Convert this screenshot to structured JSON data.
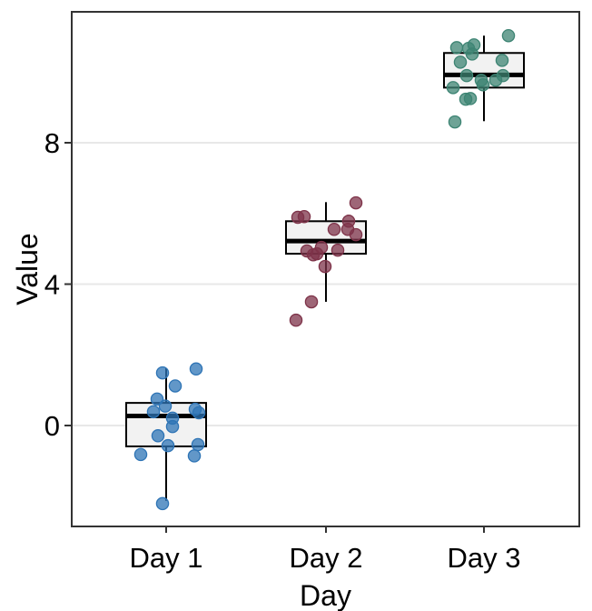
{
  "chart_data": {
    "type": "boxplot",
    "title": "",
    "xlabel": "Day",
    "ylabel": "Value",
    "categories": [
      "Day 1",
      "Day 2",
      "Day 3"
    ],
    "y_ticks": [
      0,
      4,
      8
    ],
    "ylim": [
      -2.9,
      11.7
    ],
    "grid": "horizontal major gridlines only",
    "legend": "none",
    "series": [
      {
        "name": "Day 1",
        "point_color": "#2e74b5",
        "box": {
          "whisker_low": -2.13,
          "q1": -0.59,
          "median": 0.27,
          "q3": 0.64,
          "whisker_high": 1.62
        },
        "points": [
          [
            1.6,
            33
          ],
          [
            1.49,
            -4
          ],
          [
            1.12,
            10
          ],
          [
            0.75,
            -10
          ],
          [
            0.55,
            -1
          ],
          [
            0.46,
            32
          ],
          [
            0.39,
            -14
          ],
          [
            0.36,
            36
          ],
          [
            0.21,
            7
          ],
          [
            -0.03,
            7
          ],
          [
            -0.29,
            -9
          ],
          [
            -0.54,
            35
          ],
          [
            -0.57,
            2
          ],
          [
            -0.82,
            -28
          ],
          [
            -0.86,
            31
          ],
          [
            -2.21,
            -4
          ]
        ]
      },
      {
        "name": "Day 2",
        "point_color": "#7e3349",
        "box": {
          "whisker_low": 3.5,
          "q1": 4.86,
          "median": 5.22,
          "q3": 5.78,
          "whisker_high": 6.32
        },
        "points": [
          [
            6.3,
            33
          ],
          [
            5.91,
            -24
          ],
          [
            5.89,
            -31
          ],
          [
            5.78,
            25
          ],
          [
            5.55,
            24
          ],
          [
            5.55,
            9
          ],
          [
            5.4,
            33
          ],
          [
            5.04,
            -5
          ],
          [
            4.96,
            13
          ],
          [
            4.94,
            -21
          ],
          [
            4.86,
            -10
          ],
          [
            4.83,
            -14
          ],
          [
            4.5,
            -1
          ],
          [
            3.5,
            -16
          ],
          [
            2.98,
            -33
          ]
        ]
      },
      {
        "name": "Day 3",
        "point_color": "#3d8473",
        "box": {
          "whisker_low": 8.61,
          "q1": 9.56,
          "median": 9.92,
          "q3": 10.54,
          "whisker_high": 11.03
        },
        "points": [
          [
            11.03,
            27
          ],
          [
            10.77,
            -11
          ],
          [
            10.69,
            -30
          ],
          [
            10.67,
            -17
          ],
          [
            10.51,
            -13
          ],
          [
            10.33,
            20
          ],
          [
            10.28,
            -26
          ],
          [
            9.9,
            -19
          ],
          [
            9.9,
            21
          ],
          [
            9.77,
            13
          ],
          [
            9.77,
            -3
          ],
          [
            9.64,
            -1
          ],
          [
            9.56,
            -34
          ],
          [
            9.25,
            -15
          ],
          [
            9.23,
            -20
          ],
          [
            8.59,
            -32
          ]
        ]
      }
    ],
    "style": {
      "point_opacity": 0.75,
      "point_radius": 6.6,
      "box_fill": "#f2f2f2",
      "box_stroke": "#000000",
      "median_color": "#000000",
      "gridline_color": "#e8e8e8",
      "panel_border": "#333333",
      "tick_color": "#333333",
      "text_color": "#000000",
      "background": "#ffffff"
    }
  }
}
